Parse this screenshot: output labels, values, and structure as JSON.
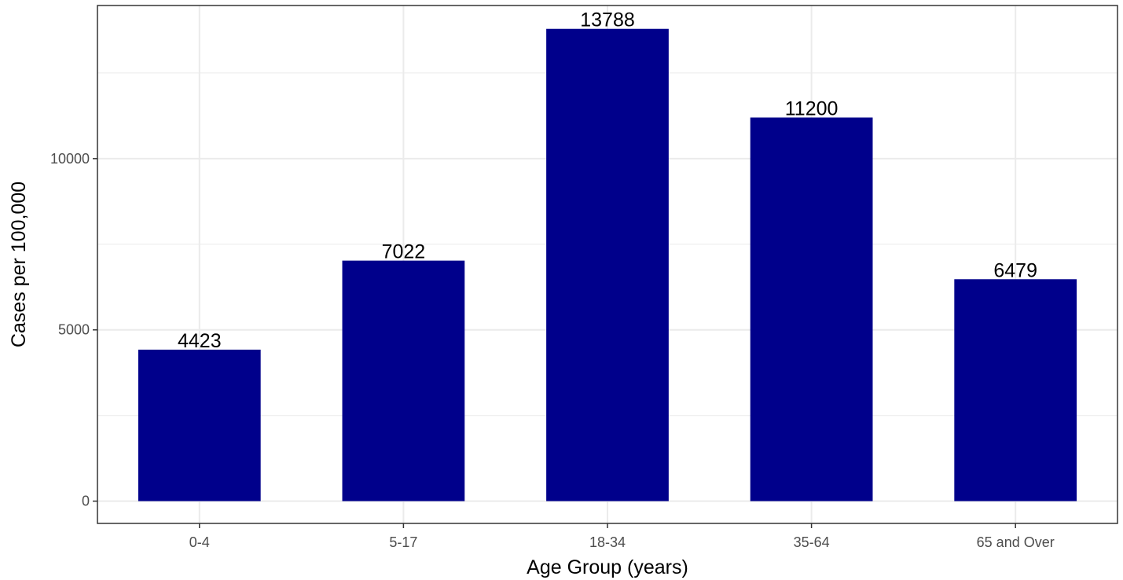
{
  "chart_data": {
    "type": "bar",
    "title": "",
    "xlabel": "Age Group (years)",
    "ylabel": "Cases per 100,000",
    "categories": [
      "0-4",
      "5-17",
      "18-34",
      "35-64",
      "65 and Over"
    ],
    "values": [
      4423,
      7022,
      13788,
      11200,
      6479
    ],
    "data_labels": [
      "4423",
      "7022",
      "13788",
      "11200",
      "6479"
    ],
    "y_ticks": [
      0,
      5000,
      10000
    ],
    "y_tick_labels": [
      "0",
      "5000",
      "10000"
    ],
    "ylim": [
      -650,
      14470
    ],
    "grid": true,
    "legend": "none",
    "bar_color": "#00008B",
    "grid_color": "#ebebeb",
    "panel_border_color": "#333333"
  }
}
